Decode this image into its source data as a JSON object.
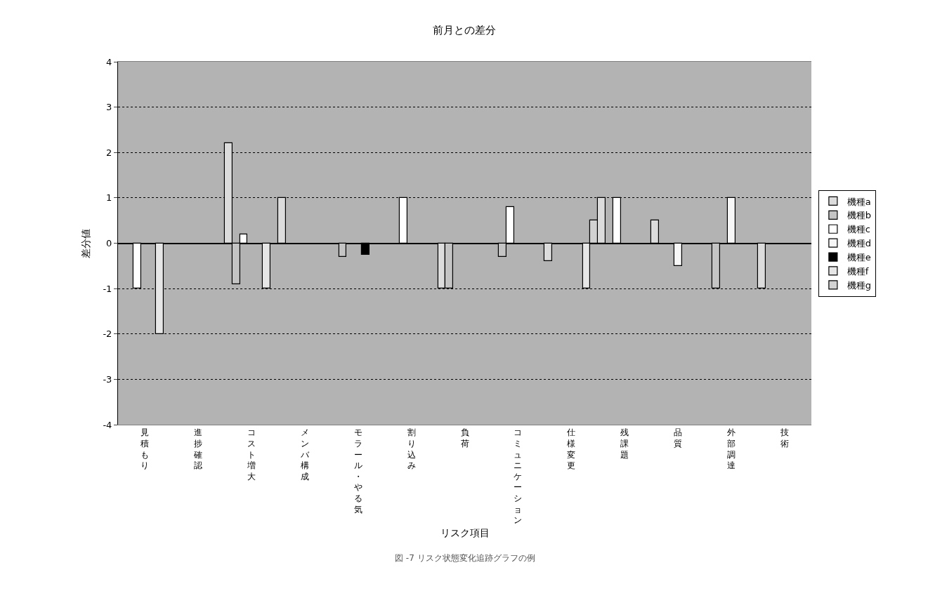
{
  "chart_data": {
    "type": "bar",
    "title": "前月との差分",
    "xlabel": "リスク項目",
    "ylabel": "差分値",
    "categories": [
      "見積もり",
      "進捗確認",
      "コスト増大",
      "メンバ構成",
      "モラール・やる気",
      "割り込み",
      "負荷",
      "コミュニケーション",
      "仕様変更",
      "残課題",
      "品質",
      "外部調達",
      "技術"
    ],
    "series": [
      {
        "name": "機種a",
        "color": "#dcdcdc",
        "values": [
          null,
          null,
          2.2,
          1,
          null,
          null,
          -1,
          null,
          -0.4,
          1,
          0.5,
          null,
          -1
        ]
      },
      {
        "name": "機種b",
        "color": "#c4c4c4",
        "values": [
          null,
          null,
          -0.9,
          null,
          -0.3,
          null,
          -1,
          -0.3,
          null,
          null,
          null,
          -1,
          null
        ]
      },
      {
        "name": "機種c",
        "color": "#ffffff",
        "values": [
          -1,
          null,
          0.2,
          null,
          null,
          1,
          null,
          0.8,
          null,
          1,
          null,
          null,
          null
        ]
      },
      {
        "name": "機種d",
        "color": "#f7f7f7",
        "values": [
          null,
          null,
          null,
          null,
          null,
          null,
          null,
          null,
          null,
          null,
          -0.5,
          1,
          null
        ]
      },
      {
        "name": "機種e",
        "color": "#000000",
        "values": [
          null,
          null,
          null,
          null,
          -0.25,
          null,
          null,
          null,
          null,
          null,
          null,
          null,
          null
        ]
      },
      {
        "name": "機種f",
        "color": "#e6e6e6",
        "values": [
          -2,
          null,
          -1,
          null,
          null,
          null,
          null,
          null,
          -1,
          null,
          null,
          null,
          null
        ]
      },
      {
        "name": "機種g",
        "color": "#d2d2d2",
        "values": [
          null,
          null,
          null,
          null,
          null,
          null,
          null,
          null,
          0.5,
          null,
          null,
          null,
          null
        ]
      }
    ],
    "ylim": [
      -4,
      4
    ],
    "yticks": [
      -4,
      -3,
      -2,
      -1,
      0,
      1,
      2,
      3,
      4
    ],
    "grid": "y",
    "legend": "right",
    "annotations": [
      "図 -7 リスク状態変化追跡グラフの例"
    ]
  }
}
